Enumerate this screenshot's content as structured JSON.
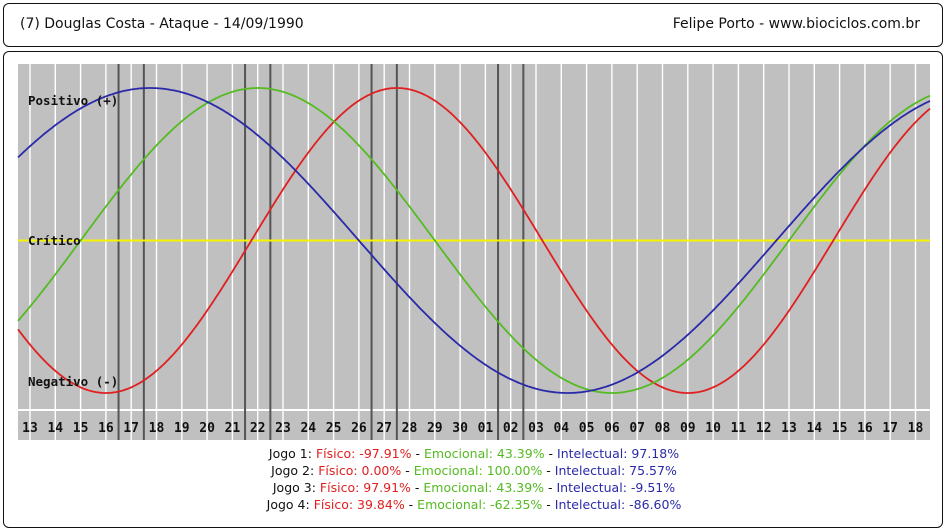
{
  "header": {
    "left": "(7)  Douglas Costa - Ataque -  14/09/1990",
    "right": "Felipe Porto   -   www.biociclos.com.br"
  },
  "chart_data": {
    "type": "line",
    "labels": {
      "positive": "Positivo (+)",
      "critical": "Crítico",
      "negative": "Negativo (-)"
    },
    "x": [
      "13",
      "14",
      "15",
      "16",
      "17",
      "18",
      "19",
      "20",
      "21",
      "22",
      "23",
      "24",
      "25",
      "26",
      "27",
      "28",
      "29",
      "30",
      "01",
      "02",
      "03",
      "04",
      "05",
      "06",
      "07",
      "08",
      "09",
      "10",
      "11",
      "12",
      "13",
      "14",
      "15",
      "16",
      "17",
      "18"
    ],
    "ylim": [
      -100,
      100
    ],
    "series": [
      {
        "name": "Físico",
        "color": "#e02020",
        "period": 23,
        "min_day_index": 3
      },
      {
        "name": "Emocional",
        "color": "#55bb22",
        "period": 28,
        "max_day_index": 9
      },
      {
        "name": "Intelectual",
        "color": "#2a2aa8",
        "period": 33,
        "max_day_index": 4.75
      }
    ],
    "game_markers": [
      4,
      5,
      9,
      10,
      14,
      15,
      19,
      20
    ],
    "colors": {
      "background": "#c0c0c0",
      "grid": "#ffffff",
      "critical_line": "#f4f400",
      "marker": "#555555"
    }
  },
  "results": [
    {
      "label": "Jogo 1:",
      "fisico": "Físico: -97.91%",
      "emocional": "Emocional: 43.39%",
      "intelectual": "Intelectual: 97.18%"
    },
    {
      "label": "Jogo 2:",
      "fisico": "Físico: 0.00%",
      "emocional": "Emocional: 100.00%",
      "intelectual": "Intelectual: 75.57%"
    },
    {
      "label": "Jogo 3:",
      "fisico": "Físico: 97.91%",
      "emocional": "Emocional: 43.39%",
      "intelectual": "Intelectual: -9.51%"
    },
    {
      "label": "Jogo 4:",
      "fisico": "Físico: 39.84%",
      "emocional": "Emocional: -62.35%",
      "intelectual": "Intelectual: -86.60%"
    }
  ]
}
